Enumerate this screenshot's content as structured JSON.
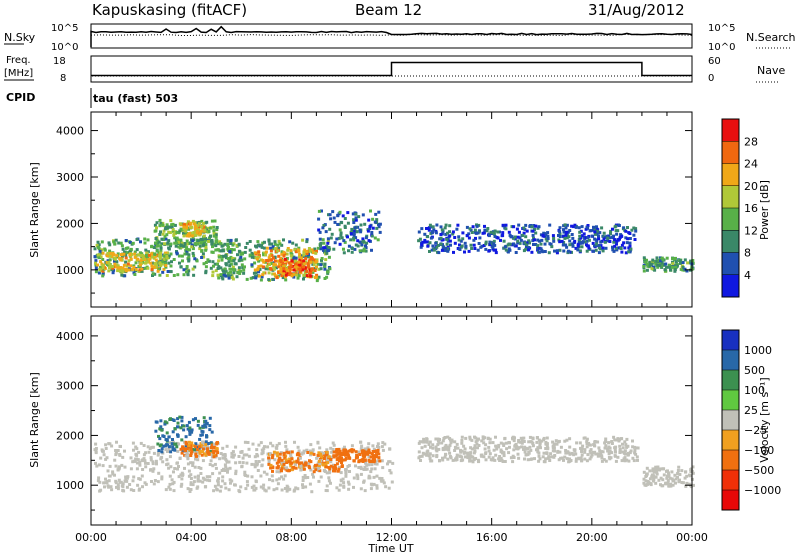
{
  "header": {
    "station": "Kapuskasing (fitACF)",
    "beam": "Beam 12",
    "date": "31/Aug/2012"
  },
  "meta_panels": {
    "nsky": {
      "label": "N.Sky",
      "ticks": [
        "10^5",
        "10^0"
      ],
      "right_label": "N.Search",
      "right_ticks": [
        "10^5",
        "10^0"
      ]
    },
    "freq": {
      "label_line1": "Freq.",
      "label_line2": "[MHz]",
      "ticks": [
        "18",
        "8"
      ],
      "right_label": "Nave",
      "right_ticks": [
        "60",
        "0"
      ],
      "freq_steps": [
        {
          "t": 0,
          "v": 10.5
        },
        {
          "t": 12,
          "v": 10.5
        },
        {
          "t": 12,
          "v": 15.5
        },
        {
          "t": 22,
          "v": 15.5
        },
        {
          "t": 22,
          "v": 10.5
        },
        {
          "t": 24,
          "v": 10.5
        }
      ]
    },
    "cpid": {
      "label": "CPID",
      "program": "tau (fast) 503"
    }
  },
  "chart_data": [
    {
      "type": "heatmap",
      "title": "",
      "xlabel": "",
      "ylabel": "Slant Range [km]",
      "xlim": [
        0,
        24
      ],
      "ylim": [
        200,
        4400
      ],
      "yticks": [
        "1000",
        "2000",
        "3000",
        "4000"
      ],
      "colorbar": {
        "label": "Power [dB]",
        "tick_labels": [
          "28",
          "24",
          "20",
          "16",
          "12",
          "8",
          "4"
        ],
        "colors": [
          "#1018e0",
          "#2050b0",
          "#3a8868",
          "#58b048",
          "#b0c838",
          "#f0a818",
          "#f06810",
          "#e81010"
        ]
      },
      "regions": [
        {
          "t": [
            0.1,
            6.0
          ],
          "range": [
            900,
            1700
          ],
          "level": 12
        },
        {
          "t": [
            0.2,
            3.0
          ],
          "range": [
            1000,
            1400
          ],
          "level": 20
        },
        {
          "t": [
            2.5,
            5.0
          ],
          "range": [
            1500,
            2100
          ],
          "level": 14
        },
        {
          "t": [
            3.5,
            4.5
          ],
          "range": [
            1750,
            2050
          ],
          "level": 20
        },
        {
          "t": [
            5.0,
            9.5
          ],
          "range": [
            800,
            1700
          ],
          "level": 12
        },
        {
          "t": [
            6.5,
            9.0
          ],
          "range": [
            850,
            1500
          ],
          "level": 22
        },
        {
          "t": [
            7.5,
            8.8
          ],
          "range": [
            900,
            1300
          ],
          "level": 26
        },
        {
          "t": [
            9.0,
            11.5
          ],
          "range": [
            1400,
            2300
          ],
          "level": 8
        },
        {
          "t": [
            13.0,
            21.8
          ],
          "range": [
            1400,
            2000
          ],
          "level": 6
        },
        {
          "t": [
            22.0,
            24.0
          ],
          "range": [
            1000,
            1300
          ],
          "level": 12
        }
      ]
    },
    {
      "type": "heatmap",
      "title": "",
      "xlabel": "Time UT",
      "ylabel": "Slant Range [km]",
      "xlim": [
        0,
        24
      ],
      "ylim": [
        200,
        4400
      ],
      "yticks": [
        "1000",
        "2000",
        "3000",
        "4000"
      ],
      "xticks": [
        "00:00",
        "04:00",
        "08:00",
        "12:00",
        "16:00",
        "20:00",
        "00:00"
      ],
      "colorbar": {
        "label": "Velocity [m s⁻¹]",
        "tick_labels": [
          "1000",
          "500",
          "100",
          "25",
          "−25",
          "−100",
          "−500",
          "−1000"
        ],
        "colors": [
          "#1830c0",
          "#2868a8",
          "#3c9050",
          "#60c840",
          "#c0c0b8",
          "#f0a020",
          "#f07010",
          "#f03008",
          "#e80808"
        ]
      },
      "regions": [
        {
          "t": [
            0.1,
            12.0
          ],
          "range": [
            900,
            1900
          ],
          "velocity": 0
        },
        {
          "t": [
            2.5,
            4.8
          ],
          "range": [
            1700,
            2400
          ],
          "velocity": 300
        },
        {
          "t": [
            3.5,
            5.0
          ],
          "range": [
            1600,
            1900
          ],
          "velocity": -150
        },
        {
          "t": [
            7.0,
            10.0
          ],
          "range": [
            1300,
            1700
          ],
          "velocity": -150
        },
        {
          "t": [
            9.5,
            11.5
          ],
          "range": [
            1500,
            1750
          ],
          "velocity": -300
        },
        {
          "t": [
            13.0,
            21.8
          ],
          "range": [
            1500,
            2000
          ],
          "velocity": 0
        },
        {
          "t": [
            22.0,
            24.0
          ],
          "range": [
            1000,
            1400
          ],
          "velocity": 0
        }
      ]
    }
  ]
}
